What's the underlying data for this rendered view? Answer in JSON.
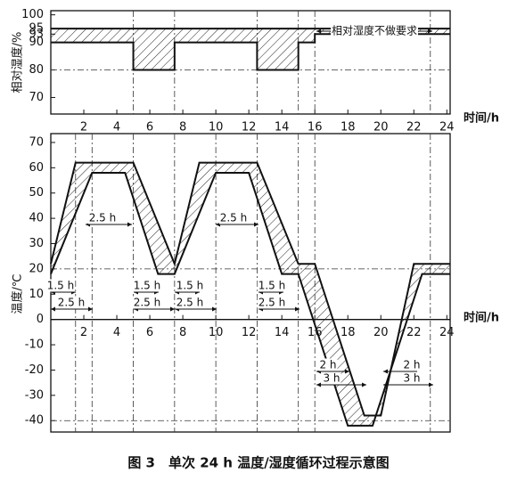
{
  "chart_data": [
    {
      "type": "line",
      "ylabel": "相对湿度/%",
      "xlabel": "时间/h",
      "xlim": [
        0,
        24.2
      ],
      "ylim": [
        64,
        101.5
      ],
      "xticks": [
        2,
        4,
        6,
        8,
        10,
        12,
        14,
        16,
        18,
        20,
        22,
        24
      ],
      "yticks": [
        70,
        80,
        90,
        93,
        95,
        100
      ],
      "series": [
        {
          "color": "#111",
          "x": [
            0,
            24.2
          ],
          "values": [
            95,
            95
          ]
        },
        {
          "color": "#111",
          "x": [
            0,
            5,
            5,
            7.5,
            7.5,
            12.5,
            12.5,
            15,
            15,
            16,
            16,
            24.2
          ],
          "values": [
            90,
            90,
            80,
            80,
            90,
            90,
            80,
            80,
            90,
            90,
            93,
            93
          ]
        }
      ],
      "hatch": true,
      "xguides": [
        5,
        7.5,
        12.5,
        15,
        16,
        23
      ],
      "yguides": [
        80
      ],
      "annotations": [
        "相对湿度不做要求"
      ]
    },
    {
      "type": "line",
      "ylabel": "温度/℃",
      "xlabel": "时间/h",
      "xlim": [
        0,
        24.2
      ],
      "ylim": [
        -44.5,
        73.5
      ],
      "xticks": [
        2,
        4,
        6,
        8,
        10,
        12,
        14,
        16,
        18,
        20,
        22,
        24
      ],
      "yticks": [
        70,
        60,
        50,
        40,
        30,
        20,
        10,
        0,
        -10,
        -20,
        -30,
        -40
      ],
      "series": [
        {
          "color": "#111",
          "x": [
            0,
            1.5,
            5,
            7.5,
            9,
            12.5,
            15,
            16,
            19,
            20,
            22,
            24.2
          ],
          "values": [
            22,
            62,
            62,
            22,
            62,
            62,
            22,
            22,
            -38,
            -38,
            22,
            22
          ]
        },
        {
          "color": "#111",
          "x": [
            0,
            2.5,
            4.5,
            6.5,
            7.5,
            10,
            12,
            14,
            15,
            18,
            19.5,
            22.5,
            24.2
          ],
          "values": [
            18,
            58,
            58,
            18,
            18,
            58,
            58,
            18,
            18,
            -42,
            -42,
            18,
            18
          ]
        }
      ],
      "hatch": true,
      "xguides": [
        1.5,
        2.5,
        5,
        7.5,
        10,
        12.5,
        15,
        16,
        23
      ],
      "yguides": [
        20,
        -40
      ],
      "annotations": [
        "2.5 h",
        "2.5 h",
        "1.5 h",
        "2.5 h",
        "1.5 h",
        "2.5 h",
        "1.5 h",
        "2.5 h",
        "1.5 h",
        "2.5 h",
        "2 h",
        "3 h",
        "2 h",
        "3 h"
      ]
    }
  ],
  "caption": "图 3　单次 24 h 温度/湿度循环过程示意图"
}
